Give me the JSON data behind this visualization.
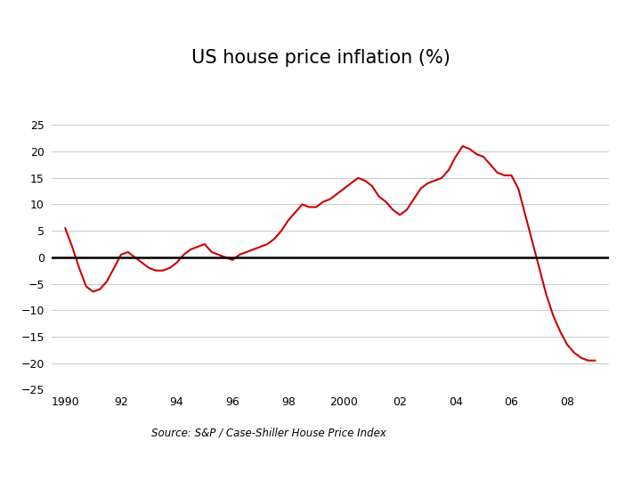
{
  "title": "US house price inflation (%)",
  "source_text": "Source: S&P / Case-Shiller House Price Index",
  "line_color": "#cc0000",
  "zero_line_color": "#000000",
  "grid_color": "#c8c8c8",
  "background_color": "#ffffff",
  "title_fontsize": 15,
  "source_fontsize": 8.5,
  "tick_fontsize": 9,
  "ylim": [
    -25,
    25
  ],
  "yticks": [
    -25,
    -20,
    -15,
    -10,
    -5,
    0,
    5,
    10,
    15,
    20,
    25
  ],
  "xtick_labels": [
    "1990",
    "92",
    "94",
    "96",
    "98",
    "2000",
    "02",
    "04",
    "06",
    "08"
  ],
  "xtick_positions": [
    1990,
    1992,
    1994,
    1996,
    1998,
    2000,
    2002,
    2004,
    2006,
    2008
  ],
  "x": [
    1990.0,
    1990.25,
    1990.5,
    1990.75,
    1991.0,
    1991.25,
    1991.5,
    1991.75,
    1992.0,
    1992.25,
    1992.5,
    1992.75,
    1993.0,
    1993.25,
    1993.5,
    1993.75,
    1994.0,
    1994.25,
    1994.5,
    1994.75,
    1995.0,
    1995.25,
    1995.5,
    1995.75,
    1996.0,
    1996.25,
    1996.5,
    1996.75,
    1997.0,
    1997.25,
    1997.5,
    1997.75,
    1998.0,
    1998.25,
    1998.5,
    1998.75,
    1999.0,
    1999.25,
    1999.5,
    1999.75,
    2000.0,
    2000.25,
    2000.5,
    2000.75,
    2001.0,
    2001.25,
    2001.5,
    2001.75,
    2002.0,
    2002.25,
    2002.5,
    2002.75,
    2003.0,
    2003.25,
    2003.5,
    2003.75,
    2004.0,
    2004.25,
    2004.5,
    2004.75,
    2005.0,
    2005.25,
    2005.5,
    2005.75,
    2006.0,
    2006.25,
    2006.5,
    2006.75,
    2007.0,
    2007.25,
    2007.5,
    2007.75,
    2008.0,
    2008.25,
    2008.5,
    2008.75,
    2009.0
  ],
  "y": [
    5.5,
    2.0,
    -2.0,
    -5.5,
    -6.5,
    -6.0,
    -4.5,
    -2.0,
    0.5,
    1.0,
    0.0,
    -1.0,
    -2.0,
    -2.5,
    -2.5,
    -2.0,
    -1.0,
    0.5,
    1.5,
    2.0,
    2.5,
    1.0,
    0.5,
    0.0,
    -0.5,
    0.5,
    1.0,
    1.5,
    2.0,
    2.5,
    3.5,
    5.0,
    7.0,
    8.5,
    10.0,
    9.5,
    9.5,
    10.5,
    11.0,
    12.0,
    13.0,
    14.0,
    15.0,
    14.5,
    13.5,
    11.5,
    10.5,
    9.0,
    8.0,
    9.0,
    11.0,
    13.0,
    14.0,
    14.5,
    15.0,
    16.5,
    19.0,
    21.0,
    20.5,
    19.5,
    19.0,
    17.5,
    16.0,
    15.5,
    15.5,
    13.0,
    8.0,
    3.0,
    -2.0,
    -7.0,
    -11.0,
    -14.0,
    -16.5,
    -18.0,
    -19.0,
    -19.5,
    -19.5
  ]
}
